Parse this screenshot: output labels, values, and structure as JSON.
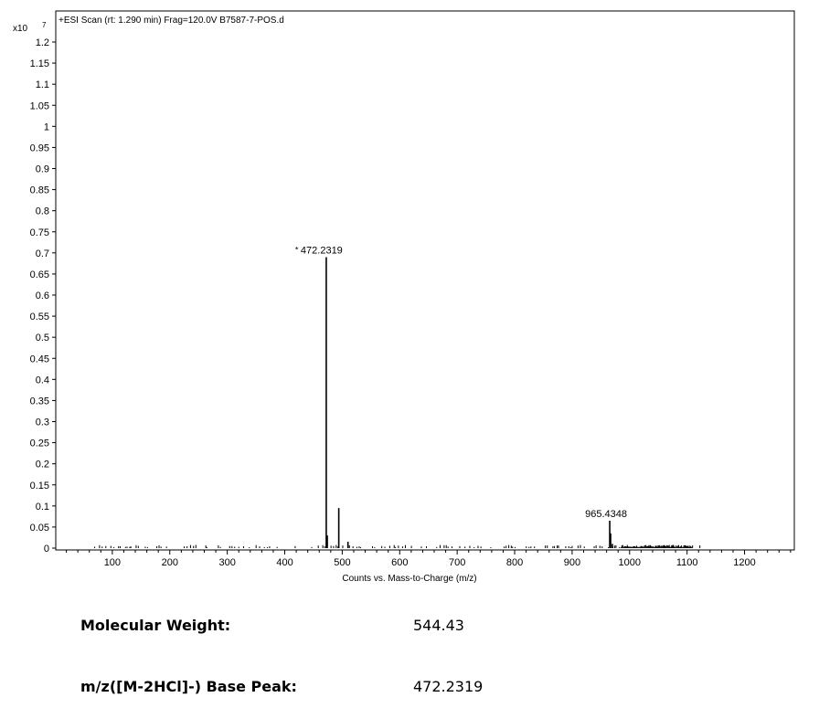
{
  "chart_data": {
    "type": "bar",
    "title": "+ESI Scan (rt: 1.290 min) Frag=120.0V B7587-7-POS.d",
    "xlabel": "Counts vs. Mass-to-Charge (m/z)",
    "ylabel": "",
    "y_multiplier_label": "x10",
    "y_multiplier_exponent": "7",
    "xlim": [
      0,
      1285
    ],
    "ylim": [
      0,
      1.25
    ],
    "x_ticks": [
      100,
      200,
      300,
      400,
      500,
      600,
      700,
      800,
      900,
      1000,
      1100,
      1200
    ],
    "y_ticks": [
      0,
      0.05,
      0.1,
      0.15,
      0.2,
      0.25,
      0.3,
      0.35,
      0.4,
      0.45,
      0.5,
      0.55,
      0.6,
      0.65,
      0.7,
      0.75,
      0.8,
      0.85,
      0.9,
      0.95,
      1,
      1.05,
      1.1,
      1.15,
      1.2
    ],
    "grid": false,
    "peaks": [
      {
        "mz": 472.2319,
        "intensity": 0.69
      },
      {
        "mz": 474.0,
        "intensity": 0.03
      },
      {
        "mz": 494.0,
        "intensity": 0.095
      },
      {
        "mz": 510.0,
        "intensity": 0.015
      },
      {
        "mz": 965.4348,
        "intensity": 0.065
      },
      {
        "mz": 967.0,
        "intensity": 0.035
      },
      {
        "mz": 970.0,
        "intensity": 0.01
      }
    ],
    "annotations": [
      {
        "text": "472.2319",
        "mz": 472.2319,
        "intensity": 0.69,
        "marker": "*"
      },
      {
        "text": "965.4348",
        "mz": 965.4348,
        "intensity": 0.065,
        "marker": ""
      }
    ]
  },
  "info": {
    "molecular_weight_label": "Molecular Weight:",
    "molecular_weight_value": "544.43",
    "base_peak_label": "m/z([M-2HCl]-) Base Peak:",
    "base_peak_value": "472.2319"
  }
}
